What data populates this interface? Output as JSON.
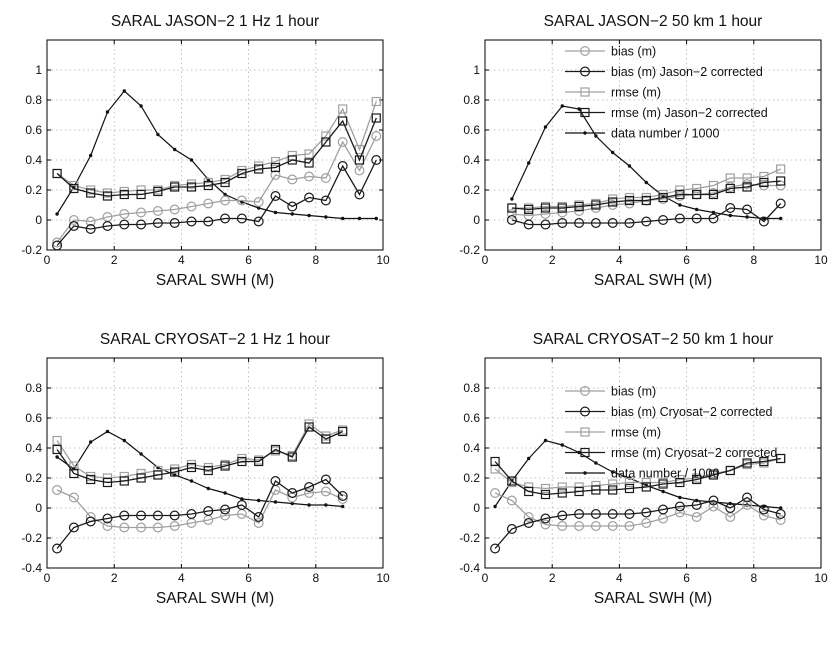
{
  "figure": {
    "colors": {
      "dark": "#1a1a1a",
      "light": "#a0a0a0",
      "data": "#111111",
      "grid": "#b0b0b0",
      "frame": "#000000"
    }
  },
  "chart_data": [
    {
      "type": "line",
      "title": "SARAL JASON−2 1 Hz 1 hour",
      "xlabel": "SARAL SWH (M)",
      "ylabel": "",
      "xlim": [
        0,
        10
      ],
      "ylim": [
        -0.2,
        1.2
      ],
      "xticks": [
        0,
        2,
        4,
        6,
        8,
        10
      ],
      "yticks": [
        -0.2,
        0,
        0.2,
        0.4,
        0.6,
        0.8,
        1
      ],
      "grid": true,
      "legend": null,
      "series": [
        {
          "key": "bias",
          "x": [
            0.3,
            0.8,
            1.3,
            1.8,
            2.3,
            2.8,
            3.3,
            3.8,
            4.3,
            4.8,
            5.3,
            5.8,
            6.3,
            6.8,
            7.3,
            7.8,
            8.3,
            8.8,
            9.3,
            9.8
          ],
          "y": [
            -0.15,
            0.0,
            -0.01,
            0.02,
            0.04,
            0.05,
            0.06,
            0.07,
            0.09,
            0.11,
            0.13,
            0.13,
            0.12,
            0.3,
            0.27,
            0.29,
            0.28,
            0.52,
            0.33,
            0.56
          ]
        },
        {
          "key": "bias_corr",
          "x": [
            0.3,
            0.8,
            1.3,
            1.8,
            2.3,
            2.8,
            3.3,
            3.8,
            4.3,
            4.8,
            5.3,
            5.8,
            6.3,
            6.8,
            7.3,
            7.8,
            8.3,
            8.8,
            9.3,
            9.8
          ],
          "y": [
            -0.17,
            -0.04,
            -0.06,
            -0.04,
            -0.03,
            -0.03,
            -0.02,
            -0.02,
            -0.01,
            -0.01,
            0.01,
            0.01,
            -0.01,
            0.16,
            0.09,
            0.15,
            0.13,
            0.36,
            0.17,
            0.4
          ]
        },
        {
          "key": "rmse",
          "x": [
            0.3,
            0.8,
            1.3,
            1.8,
            2.3,
            2.8,
            3.3,
            3.8,
            4.3,
            4.8,
            5.3,
            5.8,
            6.3,
            6.8,
            7.3,
            7.8,
            8.3,
            8.8,
            9.3,
            9.8
          ],
          "y": [
            0.31,
            0.23,
            0.2,
            0.18,
            0.19,
            0.2,
            0.2,
            0.23,
            0.24,
            0.25,
            0.27,
            0.33,
            0.36,
            0.39,
            0.43,
            0.44,
            0.56,
            0.74,
            0.47,
            0.79
          ]
        },
        {
          "key": "rmse_corr",
          "x": [
            0.3,
            0.8,
            1.3,
            1.8,
            2.3,
            2.8,
            3.3,
            3.8,
            4.3,
            4.8,
            5.3,
            5.8,
            6.3,
            6.8,
            7.3,
            7.8,
            8.3,
            8.8,
            9.3,
            9.8
          ],
          "y": [
            0.31,
            0.21,
            0.18,
            0.16,
            0.17,
            0.17,
            0.19,
            0.22,
            0.22,
            0.23,
            0.25,
            0.31,
            0.34,
            0.35,
            0.4,
            0.38,
            0.52,
            0.66,
            0.4,
            0.68
          ]
        },
        {
          "key": "data",
          "x": [
            0.3,
            0.8,
            1.3,
            1.8,
            2.3,
            2.8,
            3.3,
            3.8,
            4.3,
            4.8,
            5.3,
            5.8,
            6.3,
            6.8,
            7.3,
            7.8,
            8.3,
            8.8,
            9.3,
            9.8
          ],
          "y": [
            0.04,
            0.22,
            0.43,
            0.72,
            0.86,
            0.76,
            0.57,
            0.47,
            0.4,
            0.27,
            0.17,
            0.12,
            0.08,
            0.05,
            0.04,
            0.03,
            0.02,
            0.01,
            0.01,
            0.01
          ]
        }
      ]
    },
    {
      "type": "line",
      "title": "SARAL JASON−2 50 km 1 hour",
      "xlabel": "SARAL SWH (M)",
      "ylabel": "",
      "xlim": [
        0,
        10
      ],
      "ylim": [
        -0.2,
        1.2
      ],
      "xticks": [
        0,
        2,
        4,
        6,
        8,
        10
      ],
      "yticks": [
        -0.2,
        0,
        0.2,
        0.4,
        0.6,
        0.8,
        1
      ],
      "grid": true,
      "legend": {
        "position": "top-right",
        "entries": [
          {
            "key": "bias",
            "label": "bias (m)"
          },
          {
            "key": "bias_corr",
            "label": "bias (m) Jason−2 corrected"
          },
          {
            "key": "rmse",
            "label": "rmse (m)"
          },
          {
            "key": "rmse_corr",
            "label": "rmse (m) Jason−2 corrected"
          },
          {
            "key": "data",
            "label": "data number / 1000"
          }
        ]
      },
      "series": [
        {
          "key": "bias",
          "x": [
            0.8,
            1.3,
            1.8,
            2.3,
            2.8,
            3.3,
            3.8,
            4.3,
            4.8,
            5.3,
            5.8,
            6.3,
            6.8,
            7.3,
            7.8,
            8.3,
            8.8
          ],
          "y": [
            0.04,
            0.03,
            0.04,
            0.05,
            0.06,
            0.08,
            0.1,
            0.11,
            0.13,
            0.14,
            0.16,
            0.17,
            0.18,
            0.22,
            0.24,
            0.23,
            0.23
          ]
        },
        {
          "key": "bias_corr",
          "x": [
            0.8,
            1.3,
            1.8,
            2.3,
            2.8,
            3.3,
            3.8,
            4.3,
            4.8,
            5.3,
            5.8,
            6.3,
            6.8,
            7.3,
            7.8,
            8.3,
            8.8
          ],
          "y": [
            0.0,
            -0.03,
            -0.03,
            -0.02,
            -0.02,
            -0.02,
            -0.02,
            -0.02,
            -0.01,
            0.0,
            0.01,
            0.01,
            0.01,
            0.08,
            0.07,
            -0.01,
            0.11
          ]
        },
        {
          "key": "rmse",
          "x": [
            0.8,
            1.3,
            1.8,
            2.3,
            2.8,
            3.3,
            3.8,
            4.3,
            4.8,
            5.3,
            5.8,
            6.3,
            6.8,
            7.3,
            7.8,
            8.3,
            8.8
          ],
          "y": [
            0.08,
            0.08,
            0.09,
            0.09,
            0.1,
            0.11,
            0.14,
            0.15,
            0.15,
            0.17,
            0.2,
            0.21,
            0.23,
            0.28,
            0.28,
            0.29,
            0.34
          ]
        },
        {
          "key": "rmse_corr",
          "x": [
            0.8,
            1.3,
            1.8,
            2.3,
            2.8,
            3.3,
            3.8,
            4.3,
            4.8,
            5.3,
            5.8,
            6.3,
            6.8,
            7.3,
            7.8,
            8.3,
            8.8
          ],
          "y": [
            0.08,
            0.07,
            0.08,
            0.08,
            0.09,
            0.1,
            0.12,
            0.13,
            0.13,
            0.15,
            0.17,
            0.17,
            0.17,
            0.21,
            0.22,
            0.25,
            0.26
          ]
        },
        {
          "key": "data",
          "x": [
            0.8,
            1.3,
            1.8,
            2.3,
            2.8,
            3.3,
            3.8,
            4.3,
            4.8,
            5.3,
            5.8,
            6.3,
            6.8,
            7.3,
            7.8,
            8.3,
            8.8
          ],
          "y": [
            0.14,
            0.38,
            0.62,
            0.76,
            0.74,
            0.56,
            0.45,
            0.36,
            0.25,
            0.16,
            0.1,
            0.07,
            0.05,
            0.03,
            0.02,
            0.01,
            0.01
          ]
        }
      ]
    },
    {
      "type": "line",
      "title": "SARAL CRYOSAT−2 1 Hz 1 hour",
      "xlabel": "SARAL SWH (M)",
      "ylabel": "",
      "xlim": [
        0,
        10
      ],
      "ylim": [
        -0.4,
        1.0
      ],
      "xticks": [
        0,
        2,
        4,
        6,
        8,
        10
      ],
      "yticks": [
        -0.4,
        -0.2,
        0,
        0.2,
        0.4,
        0.6,
        0.8
      ],
      "grid": true,
      "legend": null,
      "series": [
        {
          "key": "bias",
          "x": [
            0.3,
            0.8,
            1.3,
            1.8,
            2.3,
            2.8,
            3.3,
            3.8,
            4.3,
            4.8,
            5.3,
            5.8,
            6.3,
            6.8,
            7.3,
            7.8,
            8.3,
            8.8
          ],
          "y": [
            0.12,
            0.07,
            -0.06,
            -0.12,
            -0.13,
            -0.13,
            -0.13,
            -0.12,
            -0.1,
            -0.08,
            -0.05,
            -0.04,
            -0.1,
            0.12,
            0.07,
            0.1,
            0.11,
            0.06
          ]
        },
        {
          "key": "bias_corr",
          "x": [
            0.3,
            0.8,
            1.3,
            1.8,
            2.3,
            2.8,
            3.3,
            3.8,
            4.3,
            4.8,
            5.3,
            5.8,
            6.3,
            6.8,
            7.3,
            7.8,
            8.3,
            8.8
          ],
          "y": [
            -0.27,
            -0.13,
            -0.09,
            -0.07,
            -0.05,
            -0.05,
            -0.05,
            -0.05,
            -0.04,
            -0.02,
            -0.01,
            0.02,
            -0.06,
            0.18,
            0.1,
            0.14,
            0.19,
            0.08
          ]
        },
        {
          "key": "rmse",
          "x": [
            0.3,
            0.8,
            1.3,
            1.8,
            2.3,
            2.8,
            3.3,
            3.8,
            4.3,
            4.8,
            5.3,
            5.8,
            6.3,
            6.8,
            7.3,
            7.8,
            8.3,
            8.8
          ],
          "y": [
            0.45,
            0.28,
            0.21,
            0.2,
            0.21,
            0.23,
            0.25,
            0.26,
            0.29,
            0.27,
            0.29,
            0.33,
            0.32,
            0.38,
            0.35,
            0.56,
            0.48,
            0.52
          ]
        },
        {
          "key": "rmse_corr",
          "x": [
            0.3,
            0.8,
            1.3,
            1.8,
            2.3,
            2.8,
            3.3,
            3.8,
            4.3,
            4.8,
            5.3,
            5.8,
            6.3,
            6.8,
            7.3,
            7.8,
            8.3,
            8.8
          ],
          "y": [
            0.39,
            0.23,
            0.19,
            0.17,
            0.18,
            0.2,
            0.22,
            0.24,
            0.27,
            0.25,
            0.28,
            0.31,
            0.31,
            0.39,
            0.34,
            0.54,
            0.46,
            0.51
          ]
        },
        {
          "key": "data",
          "x": [
            0.3,
            0.8,
            1.3,
            1.8,
            2.3,
            2.8,
            3.3,
            3.8,
            4.3,
            4.8,
            5.3,
            5.8,
            6.3,
            6.8,
            7.3,
            7.8,
            8.3,
            8.8
          ],
          "y": [
            0.34,
            0.26,
            0.44,
            0.51,
            0.45,
            0.36,
            0.27,
            0.22,
            0.18,
            0.13,
            0.1,
            0.06,
            0.05,
            0.04,
            0.03,
            0.02,
            0.02,
            0.01
          ]
        }
      ]
    },
    {
      "type": "line",
      "title": "SARAL CRYOSAT−2 50 km 1 hour",
      "xlabel": "SARAL SWH (M)",
      "ylabel": "",
      "xlim": [
        0,
        10
      ],
      "ylim": [
        -0.4,
        1.0
      ],
      "xticks": [
        0,
        2,
        4,
        6,
        8,
        10
      ],
      "yticks": [
        -0.4,
        -0.2,
        0,
        0.2,
        0.4,
        0.6,
        0.8
      ],
      "grid": true,
      "legend": {
        "position": "top-right",
        "entries": [
          {
            "key": "bias",
            "label": "bias (m)"
          },
          {
            "key": "bias_corr",
            "label": "bias (m) Cryosat−2 corrected"
          },
          {
            "key": "rmse",
            "label": "rmse (m)"
          },
          {
            "key": "rmse_corr",
            "label": "rmse (m) Cryosat−2 corrected"
          },
          {
            "key": "data",
            "label": "data number / 1000"
          }
        ]
      },
      "series": [
        {
          "key": "bias",
          "x": [
            0.3,
            0.8,
            1.3,
            1.8,
            2.3,
            2.8,
            3.3,
            3.8,
            4.3,
            4.8,
            5.3,
            5.8,
            6.3,
            6.8,
            7.3,
            7.8,
            8.3,
            8.8
          ],
          "y": [
            0.1,
            0.05,
            -0.06,
            -0.11,
            -0.12,
            -0.12,
            -0.12,
            -0.12,
            -0.12,
            -0.1,
            -0.07,
            -0.03,
            -0.06,
            0.01,
            -0.06,
            0.02,
            -0.05,
            -0.08
          ]
        },
        {
          "key": "bias_corr",
          "x": [
            0.3,
            0.8,
            1.3,
            1.8,
            2.3,
            2.8,
            3.3,
            3.8,
            4.3,
            4.8,
            5.3,
            5.8,
            6.3,
            6.8,
            7.3,
            7.8,
            8.3,
            8.8
          ],
          "y": [
            -0.27,
            -0.14,
            -0.1,
            -0.07,
            -0.05,
            -0.04,
            -0.04,
            -0.04,
            -0.04,
            -0.03,
            -0.01,
            0.01,
            0.02,
            0.05,
            0.0,
            0.07,
            -0.01,
            -0.04
          ]
        },
        {
          "key": "rmse",
          "x": [
            0.3,
            0.8,
            1.3,
            1.8,
            2.3,
            2.8,
            3.3,
            3.8,
            4.3,
            4.8,
            5.3,
            5.8,
            6.3,
            6.8,
            7.3,
            7.8,
            8.3,
            8.8
          ],
          "y": [
            0.26,
            0.17,
            0.14,
            0.13,
            0.14,
            0.14,
            0.15,
            0.16,
            0.17,
            0.17,
            0.17,
            0.19,
            0.2,
            0.23,
            0.25,
            0.29,
            0.3,
            0.33
          ]
        },
        {
          "key": "rmse_corr",
          "x": [
            0.3,
            0.8,
            1.3,
            1.8,
            2.3,
            2.8,
            3.3,
            3.8,
            4.3,
            4.8,
            5.3,
            5.8,
            6.3,
            6.8,
            7.3,
            7.8,
            8.3,
            8.8
          ],
          "y": [
            0.31,
            0.18,
            0.11,
            0.09,
            0.1,
            0.11,
            0.12,
            0.12,
            0.13,
            0.14,
            0.16,
            0.17,
            0.19,
            0.22,
            0.25,
            0.3,
            0.31,
            0.33
          ]
        },
        {
          "key": "data",
          "x": [
            0.3,
            0.8,
            1.3,
            1.8,
            2.3,
            2.8,
            3.3,
            3.8,
            4.3,
            4.8,
            5.3,
            5.8,
            6.3,
            6.8,
            7.3,
            7.8,
            8.3,
            8.8
          ],
          "y": [
            0.01,
            0.18,
            0.33,
            0.45,
            0.42,
            0.37,
            0.3,
            0.24,
            0.2,
            0.15,
            0.11,
            0.07,
            0.05,
            0.04,
            0.03,
            0.02,
            0.01,
            0.0
          ]
        }
      ]
    }
  ]
}
